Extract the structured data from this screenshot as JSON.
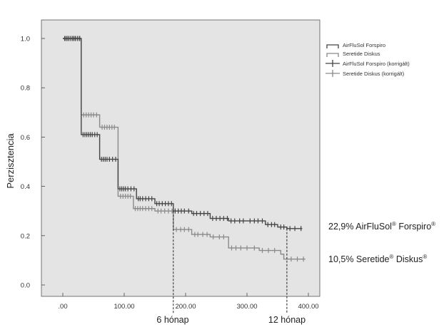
{
  "chart_data": {
    "type": "line",
    "step": true,
    "ylabel": "Perzisztencia",
    "xlim": [
      0,
      420
    ],
    "ylim": [
      -0.05,
      1.1
    ],
    "x_ticks": [
      0,
      100,
      200,
      300,
      400
    ],
    "x_tick_labels": [
      ".00",
      "100.00",
      "200.00",
      "300.00",
      "400.00"
    ],
    "y_ticks": [
      0,
      0.2,
      0.4,
      0.6,
      0.8,
      1.0
    ],
    "y_tick_labels": [
      "0.0",
      "0.2",
      "0.4",
      "0.6",
      "0.8",
      "1.0"
    ],
    "plot_background": "#e4e4e4",
    "grid": false,
    "legend_position": "top-right",
    "legend": [
      "AirFluSol Forspiro",
      "Seretide Diskus",
      "AirFluSol Forspiro (korrigált)",
      "Seretide Diskus (korrigált)"
    ],
    "series": [
      {
        "name": "AirFluSol Forspiro",
        "color": "#444444",
        "steps": [
          [
            0,
            1.0
          ],
          [
            30,
            0.61
          ],
          [
            60,
            0.51
          ],
          [
            90,
            0.39
          ],
          [
            120,
            0.35
          ],
          [
            150,
            0.33
          ],
          [
            180,
            0.3
          ],
          [
            210,
            0.29
          ],
          [
            240,
            0.27
          ],
          [
            270,
            0.26
          ],
          [
            300,
            0.26
          ],
          [
            330,
            0.245
          ],
          [
            350,
            0.235
          ],
          [
            365,
            0.229
          ],
          [
            390,
            0.229
          ]
        ],
        "censor_x": [
          3,
          6,
          9,
          12,
          15,
          18,
          21,
          24,
          27,
          33,
          36,
          39,
          42,
          45,
          48,
          52,
          56,
          63,
          66,
          69,
          72,
          76,
          81,
          86,
          93,
          96,
          99,
          102,
          106,
          111,
          116,
          123,
          126,
          130,
          135,
          140,
          145,
          153,
          157,
          162,
          167,
          172,
          177,
          183,
          188,
          193,
          198,
          205,
          213,
          218,
          224,
          230,
          236,
          244,
          250,
          256,
          262,
          268,
          274,
          280,
          288,
          294,
          305,
          312,
          318,
          325,
          334,
          340,
          345,
          355,
          360,
          370,
          378,
          388
        ]
      },
      {
        "name": "Seretide Diskus",
        "color": "#8a8a8a",
        "steps": [
          [
            0,
            1.0
          ],
          [
            30,
            0.69
          ],
          [
            60,
            0.64
          ],
          [
            90,
            0.36
          ],
          [
            115,
            0.31
          ],
          [
            150,
            0.3
          ],
          [
            180,
            0.225
          ],
          [
            210,
            0.205
          ],
          [
            240,
            0.195
          ],
          [
            270,
            0.15
          ],
          [
            320,
            0.14
          ],
          [
            355,
            0.125
          ],
          [
            360,
            0.105
          ],
          [
            395,
            0.105
          ]
        ],
        "censor_x": [
          4,
          8,
          12,
          16,
          20,
          24,
          28,
          34,
          38,
          42,
          46,
          50,
          55,
          64,
          68,
          72,
          76,
          80,
          84,
          94,
          98,
          102,
          106,
          110,
          118,
          122,
          126,
          130,
          135,
          140,
          145,
          155,
          160,
          166,
          172,
          178,
          185,
          192,
          198,
          205,
          215,
          220,
          228,
          235,
          245,
          255,
          262,
          275,
          282,
          290,
          300,
          312,
          325,
          335,
          345,
          372,
          382,
          392
        ]
      }
    ],
    "annotations": [
      {
        "text": "22,9% AirFluSol",
        "sup": "®",
        "text2": " Forspiro",
        "sup2": "®"
      },
      {
        "text": "10,5% Seretide",
        "sup": "®",
        "text2": " Diskus",
        "sup2": "®"
      }
    ],
    "markers": [
      {
        "x": 180,
        "label": "6 hónap"
      },
      {
        "x": 365,
        "label": "12 hónap"
      }
    ]
  }
}
